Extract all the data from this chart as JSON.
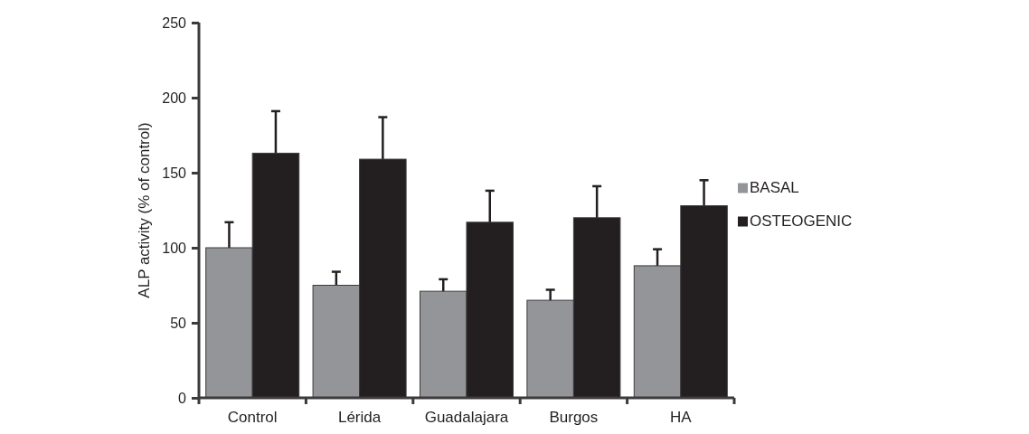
{
  "chart_data": {
    "type": "bar",
    "ylabel": "ALP activity (% of control)",
    "categories": [
      "Control",
      "Lérida",
      "Guadalajara",
      "Burgos",
      "HA"
    ],
    "series": [
      {
        "name": "BASAL",
        "color": "#939598",
        "values": [
          100,
          75,
          71,
          65,
          88
        ],
        "errors": [
          17,
          9,
          8,
          7,
          11
        ]
      },
      {
        "name": "OSTEOGENIC",
        "color": "#231f20",
        "values": [
          163,
          159,
          117,
          120,
          128
        ],
        "errors": [
          28,
          28,
          21,
          21,
          17
        ]
      }
    ],
    "ylim": [
      0,
      250
    ],
    "yticks": [
      0,
      50,
      100,
      150,
      200,
      250
    ],
    "grid": false,
    "legend": "right"
  }
}
